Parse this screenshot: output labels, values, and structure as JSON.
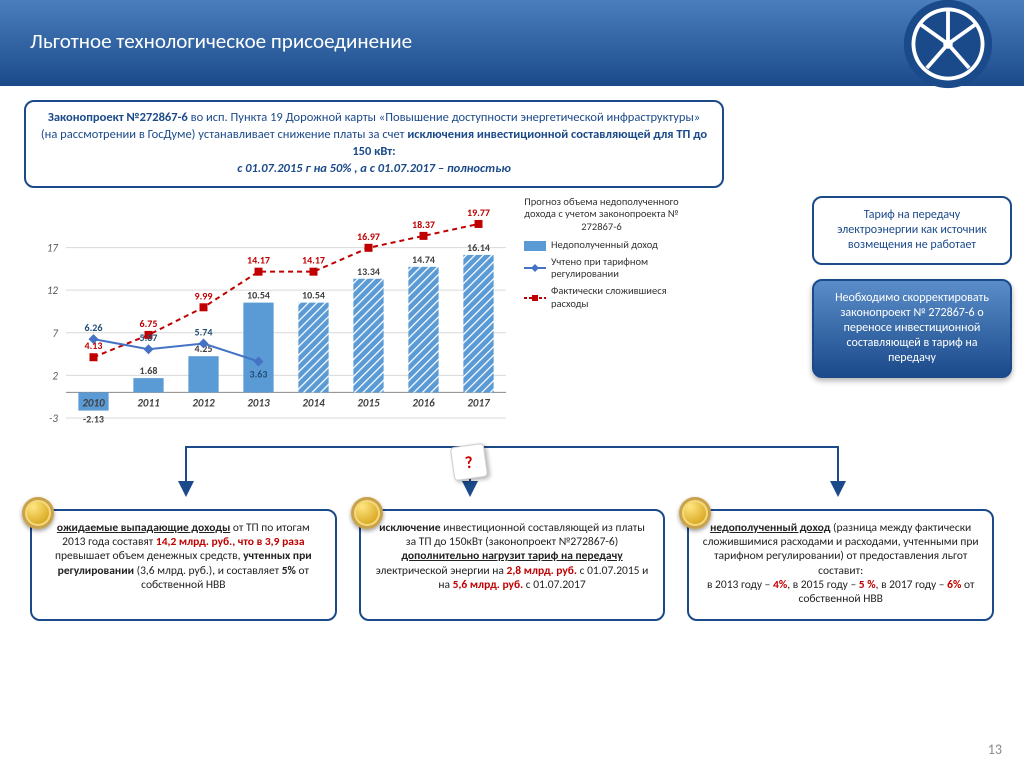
{
  "header": {
    "title": "Льготное технологическое присоединение"
  },
  "law_box": {
    "html": "<b>Законопроект №272867-6</b> во исп. Пункта 19 Дорожной карты «Повышение доступности энергетической инфраструктуры» (на рассмотрении в ГосДуме) устанавливает снижение платы за счет <b>исключения инвестиционной составляющей для ТП до 150 кВт:</b><br><i>с 01.07.2015 г на 50% , а с 01.07.2017 – полностью</i>"
  },
  "chart": {
    "type": "bar+line",
    "categories": [
      "2010",
      "2011",
      "2012",
      "2013",
      "2014",
      "2015",
      "2016",
      "2017"
    ],
    "bars": {
      "values": [
        -2.13,
        1.68,
        4.25,
        10.54,
        10.54,
        13.34,
        14.74,
        16.14
      ],
      "color": "#5b9bd5",
      "neg_color": "#5b9bd5",
      "hatch_from_index": 4
    },
    "line_blue": {
      "values": [
        6.26,
        5.07,
        5.74,
        3.63,
        null,
        null,
        null,
        null
      ],
      "color": "#4472c4",
      "marker": "diamond"
    },
    "line_red": {
      "values": [
        4.13,
        6.75,
        9.99,
        14.17,
        14.17,
        16.97,
        18.37,
        19.77
      ],
      "color": "#c00000",
      "marker": "square",
      "dash": true
    },
    "y": {
      "min": -3,
      "max": 20,
      "ticks": [
        -3,
        2,
        7,
        12,
        17
      ],
      "grid_color": "#d9d9d9"
    },
    "bar_label_color": "#404040",
    "blue_label_color": "#1f4e79",
    "red_label_color": "#c00000",
    "label_fontsize": 10,
    "axis_label_fontsize": 11,
    "bar_width": 0.55,
    "background_color": "#ffffff",
    "font": "Calibri"
  },
  "legend": {
    "title": "Прогноз объема недополученного дохода с учетом законопроекта № 272867-6",
    "items": [
      {
        "type": "bar",
        "color": "#5b9bd5",
        "label": "Недополученный доход"
      },
      {
        "type": "line",
        "color": "#4472c4",
        "marker": "diamond",
        "label": "Учтено при тарифном регулировании"
      },
      {
        "type": "line",
        "color": "#c00000",
        "marker": "square",
        "dash": true,
        "label": "Фактически сложившиеся расходы"
      }
    ]
  },
  "side": {
    "box1": "Тариф на передачу электроэнергии как источник возмещения не работает",
    "box2": "Необходимо скорректировать законопроект № 272867-6 о переносе инвестиционной составляющей в тариф на передачу"
  },
  "bottom": [
    {
      "html": "<u>ожидаемые выпадающие доходы</u> от ТП по итогам 2013 года составят <span class='red'>14,2 млрд. руб., что в 3,9 раза</span> превышает объем денежных средств, <b>учтенных при регулировании</b> (3,6 млрд. руб.), и составляет <b>5%</b> от собственной НВВ"
    },
    {
      "html": "<b>исключение</b> инвестиционной составляющей из платы за ТП до 150кВт (законопроект №272867-6) <u>дополнительно нагрузит тариф на передачу</u> электрической энергии на <span class='red'>2,8 млрд. руб.</span> с 01.07.2015 и на <span class='red'>5,6 млрд. руб.</span> с 01.07.2017"
    },
    {
      "html": "<u>недополученный доход</u> (разница между фактически сложившимися расходами и расходами, учтенными при тарифном регулировании) от предоставления льгот составит:<br>в 2013 году – <span class='red'>4%</span>, в 2015 году – <span class='red'>5 %</span>, в 2017 году – <span class='red'>6%</span> от собственной НВВ"
    }
  ],
  "page_number": "13",
  "colors": {
    "primary": "#1b4a8a",
    "accent": "#c00000"
  }
}
